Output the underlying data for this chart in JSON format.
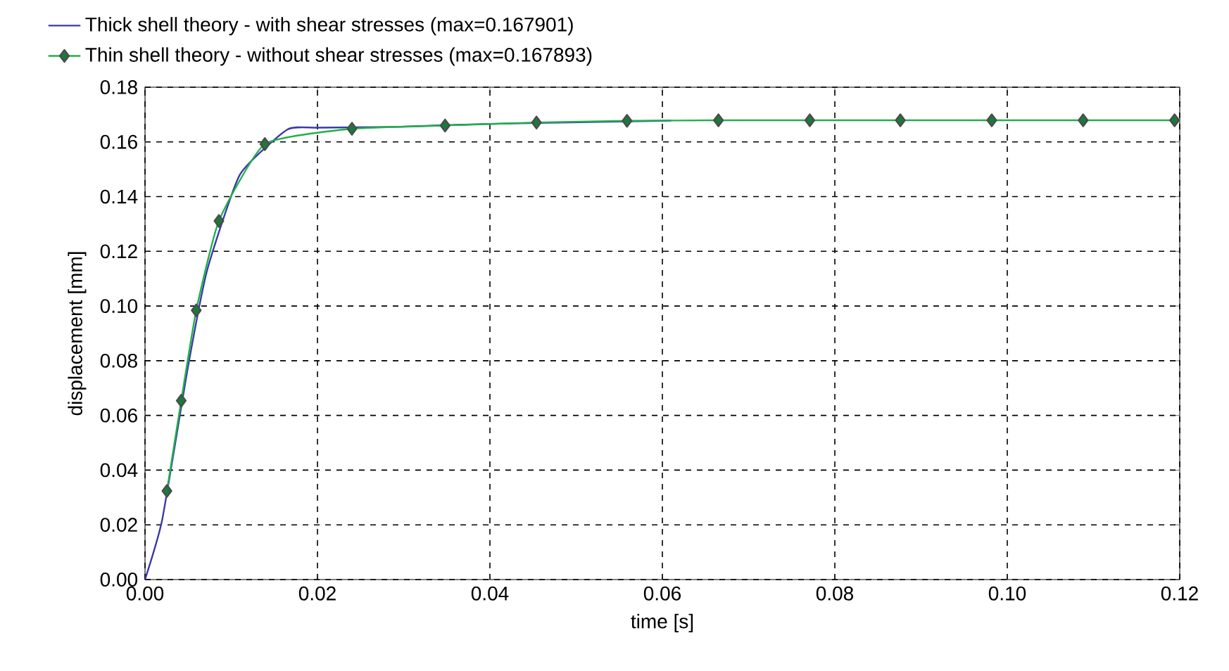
{
  "chart_data": {
    "type": "line",
    "xlabel": "time [s]",
    "ylabel": "displacement [mm]",
    "series": [
      {
        "name": "Thick shell theory - with shear stresses (max=0.167901)",
        "color": "#3a3aa8",
        "marker": "none",
        "x": [
          0,
          0.002,
          0.005,
          0.0072,
          0.011,
          0.0165,
          0.02,
          0.029,
          0.04,
          0.061
        ],
        "values": [
          0,
          0.022,
          0.078,
          0.113,
          0.148,
          0.1645,
          0.1652,
          0.1655,
          0.1666,
          0.1678
        ]
      },
      {
        "name": "Thin shell theory - without shear stresses (max=0.167893)",
        "color": "#22b04a",
        "marker": "diamond",
        "x": [
          0.00254,
          0.0042,
          0.00594,
          0.00857,
          0.0139,
          0.024,
          0.0348,
          0.0454,
          0.0559,
          0.0665,
          0.0771,
          0.0876,
          0.0982,
          0.1088,
          0.1194
        ],
        "values": [
          0.0324,
          0.0654,
          0.0984,
          0.1311,
          0.1592,
          0.1648,
          0.166,
          0.1671,
          0.1677,
          0.1679,
          0.1679,
          0.1679,
          0.1679,
          0.1679,
          0.1679
        ]
      }
    ],
    "xlim": [
      0,
      0.12
    ],
    "ylim": [
      0,
      0.18
    ],
    "xticks": [
      {
        "value": 0,
        "label": "0.00"
      },
      {
        "value": 0.02,
        "label": "0.02"
      },
      {
        "value": 0.04,
        "label": "0.04"
      },
      {
        "value": 0.06,
        "label": "0.06"
      },
      {
        "value": 0.08,
        "label": "0.08"
      },
      {
        "value": 0.1,
        "label": "0.10"
      },
      {
        "value": 0.12,
        "label": "0.12"
      }
    ],
    "yticks": [
      {
        "value": 0,
        "label": "0.00"
      },
      {
        "value": 0.02,
        "label": "0.02"
      },
      {
        "value": 0.04,
        "label": "0.04"
      },
      {
        "value": 0.06,
        "label": "0.06"
      },
      {
        "value": 0.08,
        "label": "0.08"
      },
      {
        "value": 0.1,
        "label": "0.10"
      },
      {
        "value": 0.12,
        "label": "0.12"
      },
      {
        "value": 0.14,
        "label": "0.14"
      },
      {
        "value": 0.16,
        "label": "0.16"
      },
      {
        "value": 0.18,
        "label": "0.18"
      }
    ],
    "grid": true,
    "legend": "top",
    "line_style": "solid"
  }
}
